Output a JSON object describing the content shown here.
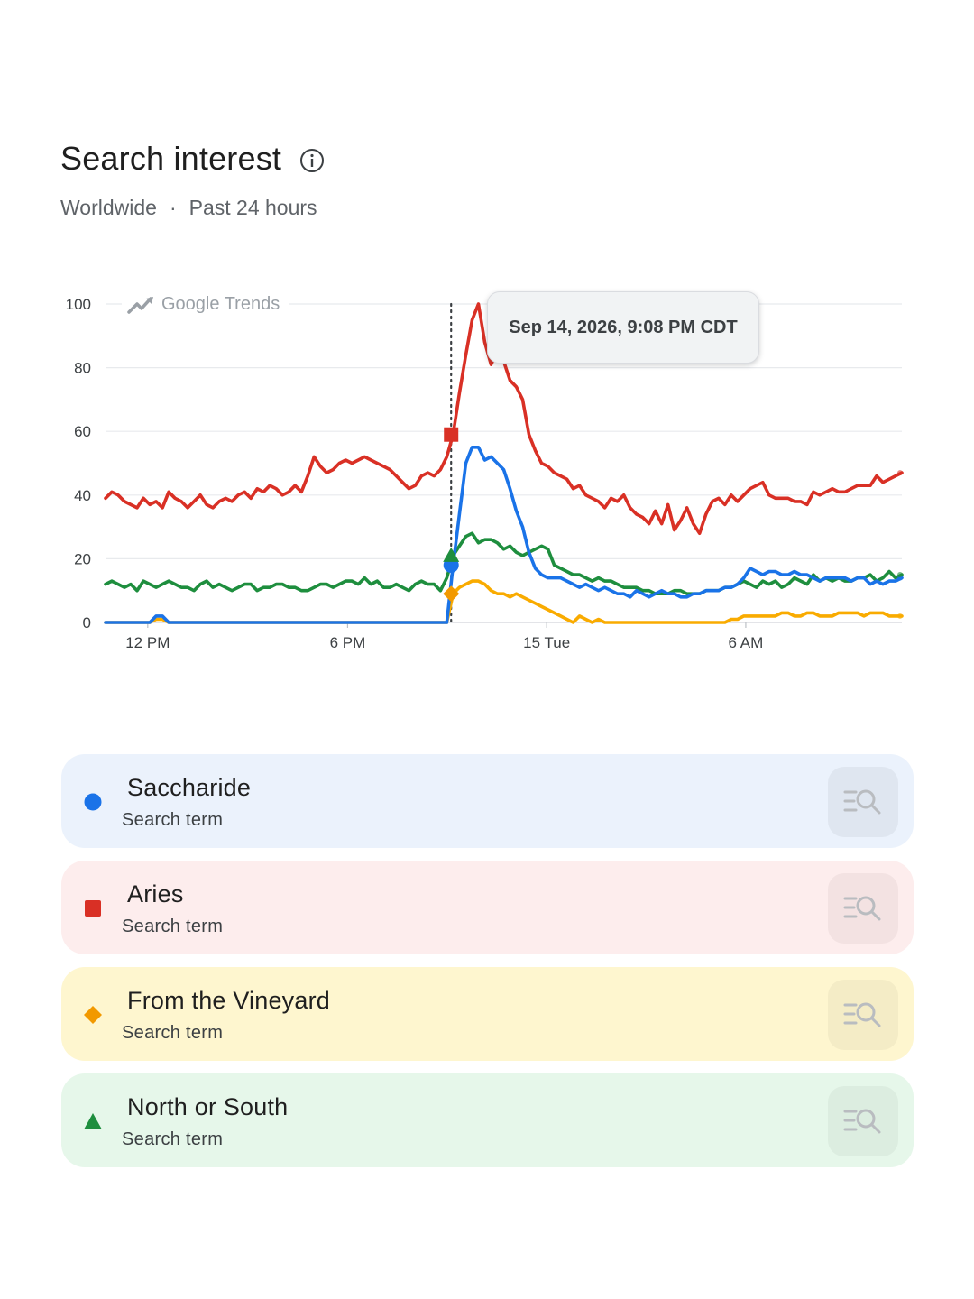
{
  "header": {
    "title": "Search interest",
    "region": "Worldwide",
    "separator": "·",
    "timeframe": "Past 24 hours",
    "info_icon": "info-icon"
  },
  "tooltip": {
    "text": "Sep 14, 2026, 9:08 PM CDT"
  },
  "watermark": {
    "text": "Google Trends",
    "icon": "trends-icon"
  },
  "colors": {
    "blue": "#1a73e8",
    "red": "#d93025",
    "yellow": "#f9ab00",
    "green": "#1e8e3e",
    "marker_yellow": "#f29900"
  },
  "chart_data": {
    "type": "line",
    "y_ticks": [
      "0",
      "20",
      "40",
      "60",
      "80",
      "100"
    ],
    "x_ticks": [
      {
        "label": "12 PM",
        "pos": 0.053
      },
      {
        "label": "6 PM",
        "pos": 0.304
      },
      {
        "label": "15 Tue",
        "pos": 0.554
      },
      {
        "label": "6 AM",
        "pos": 0.804
      }
    ],
    "ylim": [
      0,
      100
    ],
    "grid": true,
    "hover_index_frac": 0.434,
    "series": [
      {
        "name": "Aries",
        "color": "#d93025",
        "marker": "square",
        "values": [
          39,
          41,
          40,
          38,
          37,
          36,
          39,
          37,
          38,
          36,
          41,
          39,
          38,
          36,
          38,
          40,
          37,
          36,
          38,
          39,
          38,
          40,
          41,
          39,
          42,
          41,
          43,
          42,
          40,
          41,
          43,
          41,
          46,
          52,
          49,
          47,
          48,
          50,
          51,
          50,
          51,
          52,
          51,
          50,
          49,
          48,
          46,
          44,
          42,
          43,
          46,
          47,
          46,
          48,
          52,
          59,
          72,
          84,
          95,
          100,
          88,
          81,
          85,
          82,
          76,
          74,
          70,
          59,
          54,
          50,
          49,
          47,
          46,
          45,
          42,
          43,
          40,
          39,
          38,
          36,
          39,
          38,
          40,
          36,
          34,
          33,
          31,
          35,
          31,
          37,
          29,
          32,
          36,
          31,
          28,
          34,
          38,
          39,
          37,
          40,
          38,
          40,
          42,
          43,
          44,
          40,
          39,
          39,
          39,
          38,
          38,
          37,
          41,
          40,
          41,
          42,
          41,
          41,
          42,
          43,
          43,
          43,
          46,
          44,
          45,
          46,
          47
        ]
      },
      {
        "name": "Saccharide",
        "color": "#1a73e8",
        "marker": "circle",
        "values": [
          0,
          0,
          0,
          0,
          0,
          0,
          0,
          0,
          2,
          2,
          0,
          0,
          0,
          0,
          0,
          0,
          0,
          0,
          0,
          0,
          0,
          0,
          0,
          0,
          0,
          0,
          0,
          0,
          0,
          0,
          0,
          0,
          0,
          0,
          0,
          0,
          0,
          0,
          0,
          0,
          0,
          0,
          0,
          0,
          0,
          0,
          0,
          0,
          0,
          0,
          0,
          0,
          0,
          0,
          0,
          18,
          34,
          50,
          55,
          55,
          51,
          52,
          50,
          48,
          42,
          35,
          30,
          22,
          17,
          15,
          14,
          14,
          14,
          13,
          12,
          11,
          12,
          11,
          10,
          11,
          10,
          9,
          9,
          8,
          10,
          9,
          8,
          9,
          10,
          9,
          9,
          8,
          8,
          9,
          9,
          10,
          10,
          10,
          11,
          11,
          12,
          14,
          17,
          16,
          15,
          16,
          16,
          15,
          15,
          16,
          15,
          15,
          14,
          13,
          14,
          14,
          14,
          14,
          13,
          14,
          14,
          12,
          13,
          12,
          13,
          13,
          14
        ]
      },
      {
        "name": "North or South",
        "color": "#1e8e3e",
        "marker": "triangle",
        "values": [
          12,
          13,
          12,
          11,
          12,
          10,
          13,
          12,
          11,
          12,
          13,
          12,
          11,
          11,
          10,
          12,
          13,
          11,
          12,
          11,
          10,
          11,
          12,
          12,
          10,
          11,
          11,
          12,
          12,
          11,
          11,
          10,
          10,
          11,
          12,
          12,
          11,
          12,
          13,
          13,
          12,
          14,
          12,
          13,
          11,
          11,
          12,
          11,
          10,
          12,
          13,
          12,
          12,
          10,
          14,
          21,
          24,
          27,
          28,
          25,
          26,
          26,
          25,
          23,
          24,
          22,
          21,
          22,
          23,
          24,
          23,
          18,
          17,
          16,
          15,
          15,
          14,
          13,
          14,
          13,
          13,
          12,
          11,
          11,
          11,
          10,
          10,
          9,
          9,
          9,
          10,
          10,
          9,
          9,
          9,
          10,
          10,
          10,
          11,
          11,
          12,
          13,
          12,
          11,
          13,
          12,
          13,
          11,
          12,
          14,
          13,
          12,
          15,
          13,
          14,
          13,
          14,
          13,
          13,
          14,
          14,
          15,
          13,
          14,
          16,
          14,
          15
        ]
      },
      {
        "name": "From the Vineyard",
        "color": "#f9ab00",
        "marker": "diamond",
        "values": [
          0,
          0,
          0,
          0,
          0,
          0,
          0,
          0,
          1,
          1,
          0,
          0,
          0,
          0,
          0,
          0,
          0,
          0,
          0,
          0,
          0,
          0,
          0,
          0,
          0,
          0,
          0,
          0,
          0,
          0,
          0,
          0,
          0,
          0,
          0,
          0,
          0,
          0,
          0,
          0,
          0,
          0,
          0,
          0,
          0,
          0,
          0,
          0,
          0,
          0,
          0,
          0,
          0,
          0,
          0,
          9,
          11,
          12,
          13,
          13,
          12,
          10,
          9,
          9,
          8,
          9,
          8,
          7,
          6,
          5,
          4,
          3,
          2,
          1,
          0,
          2,
          1,
          0,
          1,
          0,
          0,
          0,
          0,
          0,
          0,
          0,
          0,
          0,
          0,
          0,
          0,
          0,
          0,
          0,
          0,
          0,
          0,
          0,
          0,
          1,
          1,
          2,
          2,
          2,
          2,
          2,
          2,
          3,
          3,
          2,
          2,
          3,
          3,
          2,
          2,
          2,
          3,
          3,
          3,
          3,
          2,
          3,
          3,
          3,
          2,
          2,
          2
        ]
      }
    ]
  },
  "legend": [
    {
      "key": "saccharide",
      "name": "Saccharide",
      "sub": "Search term",
      "marker": "circle",
      "color": "#1a73e8",
      "bg": "#ebf2fc",
      "btn": "#dfe6f0"
    },
    {
      "key": "aries",
      "name": "Aries",
      "sub": "Search term",
      "marker": "square",
      "color": "#d93025",
      "bg": "#fdeded",
      "btn": "#f3e2e2"
    },
    {
      "key": "from-the-vineyard",
      "name": "From the Vineyard",
      "sub": "Search term",
      "marker": "diamond",
      "color": "#f29900",
      "bg": "#fef6cf",
      "btn": "#f4ecc6"
    },
    {
      "key": "north-or-south",
      "name": "North or South",
      "sub": "Search term",
      "marker": "triangle",
      "color": "#1e8e3e",
      "bg": "#e6f7ea",
      "btn": "#dcede0"
    }
  ]
}
